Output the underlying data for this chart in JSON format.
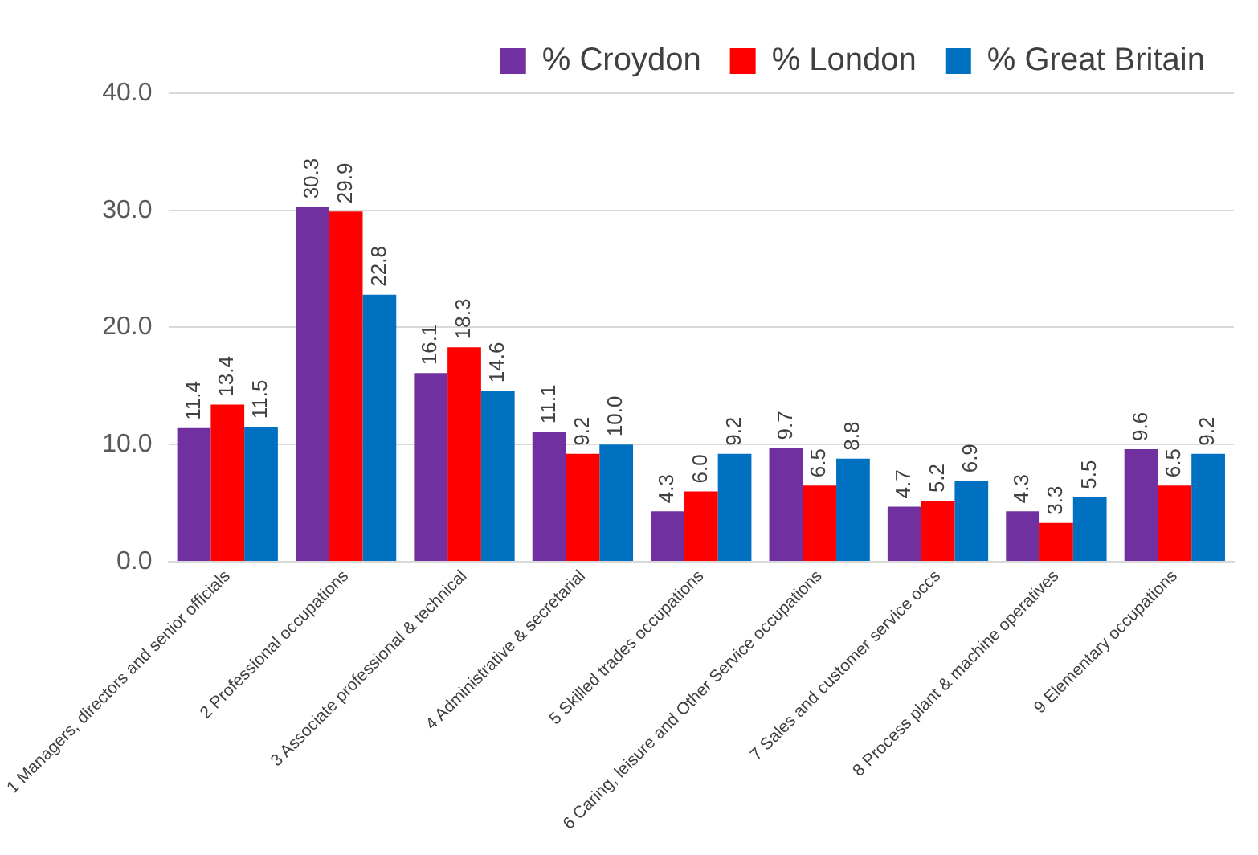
{
  "chart_data": {
    "type": "bar",
    "categories": [
      "1 Managers, directors and senior officials",
      "2 Professional occupations",
      "3 Associate professional & technical",
      "4 Administrative & secretarial",
      "5 Skilled trades occupations",
      "6 Caring, leisure and Other Service occupations",
      "7 Sales and customer service occs",
      "8 Process plant & machine operatives",
      "9 Elementary occupations"
    ],
    "series": [
      {
        "name": "% Croydon",
        "color": "#7030a0",
        "values": [
          11.4,
          30.3,
          16.1,
          11.1,
          4.3,
          9.7,
          4.7,
          4.3,
          9.6
        ],
        "value_labels": [
          "11.4",
          "30.3",
          "16.1",
          "11.1",
          "4.3",
          "9.7",
          "4.7",
          "4.3",
          "9.6"
        ]
      },
      {
        "name": "% London",
        "color": "#ff0000",
        "values": [
          13.4,
          29.9,
          18.3,
          9.2,
          6.0,
          6.5,
          5.2,
          3.3,
          6.5
        ],
        "value_labels": [
          "13.4",
          "29.9",
          "18.3",
          "9.2",
          "6.0",
          "6.5",
          "5.2",
          "3.3",
          "6.5"
        ]
      },
      {
        "name": "% Great Britain",
        "color": "#0070c0",
        "values": [
          11.5,
          22.8,
          14.6,
          10.0,
          9.2,
          8.8,
          6.9,
          5.5,
          9.2
        ],
        "value_labels": [
          "11.5",
          "22.8",
          "14.6",
          "10.0",
          "9.2",
          "8.8",
          "6.9",
          "5.5",
          "9.2"
        ]
      }
    ],
    "ylim": [
      0,
      40
    ],
    "yticks": [
      {
        "value": 0,
        "label": "0.0"
      },
      {
        "value": 10,
        "label": "10.0"
      },
      {
        "value": 20,
        "label": "20.0"
      },
      {
        "value": 30,
        "label": "30.0"
      },
      {
        "value": 40,
        "label": "40.0"
      }
    ],
    "grid": "y",
    "legend": "top right"
  }
}
